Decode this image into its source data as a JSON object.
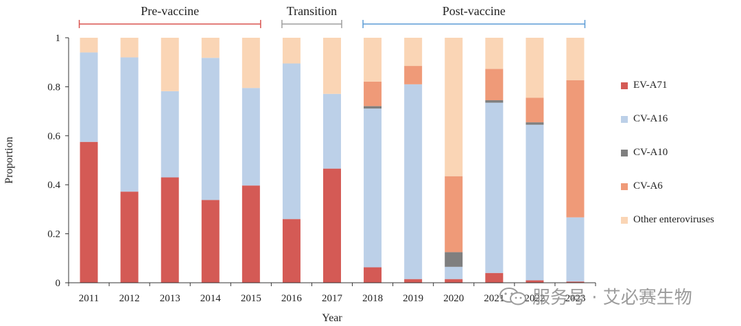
{
  "chart_data": {
    "type": "bar",
    "stacked": true,
    "categories": [
      "2011",
      "2012",
      "2013",
      "2014",
      "2015",
      "2016",
      "2017",
      "2018",
      "2019",
      "2020",
      "2021",
      "2022",
      "2023"
    ],
    "series": [
      {
        "name": "EV-A71",
        "color": "#d45a55",
        "values": [
          0.575,
          0.372,
          0.43,
          0.338,
          0.397,
          0.26,
          0.466,
          0.063,
          0.015,
          0.015,
          0.04,
          0.01,
          0.005
        ]
      },
      {
        "name": "CV-A16",
        "color": "#bcd0e8",
        "values": [
          0.365,
          0.548,
          0.352,
          0.58,
          0.398,
          0.635,
          0.305,
          0.648,
          0.795,
          0.05,
          0.695,
          0.635,
          0.262
        ]
      },
      {
        "name": "CV-A10",
        "color": "#7f7f7f",
        "values": [
          0,
          0,
          0,
          0,
          0,
          0,
          0,
          0.01,
          0,
          0.06,
          0.01,
          0.01,
          0
        ]
      },
      {
        "name": "CV-A6",
        "color": "#ef9a78",
        "values": [
          0,
          0,
          0,
          0,
          0,
          0,
          0,
          0.1,
          0.075,
          0.31,
          0.128,
          0.1,
          0.56
        ]
      },
      {
        "name": "Other enteroviruses",
        "color": "#fad5b5",
        "values": [
          0.06,
          0.08,
          0.218,
          0.082,
          0.205,
          0.105,
          0.229,
          0.179,
          0.115,
          0.565,
          0.127,
          0.245,
          0.173
        ]
      }
    ],
    "ylabel": "Proportion",
    "xlabel": "Year",
    "ylim": [
      0,
      1
    ],
    "yticks": [
      0,
      0.2,
      0.4,
      0.6,
      0.8,
      1
    ],
    "ytick_labels": [
      "0",
      "0.2",
      "0.4",
      "0.6",
      "0.8",
      "1"
    ],
    "periods": [
      {
        "label": "Pre-vaccine",
        "from": "2011",
        "to": "2015",
        "color": "#d9534f"
      },
      {
        "label": "Transition",
        "from": "2016",
        "to": "2017",
        "color": "#9e9e9e"
      },
      {
        "label": "Post-vaccine",
        "from": "2018",
        "to": "2023",
        "color": "#5b9bd5"
      }
    ],
    "legend_position": "right"
  },
  "watermark": {
    "text": "服务号 · 艾必赛生物",
    "icon": "wechat-icon"
  }
}
